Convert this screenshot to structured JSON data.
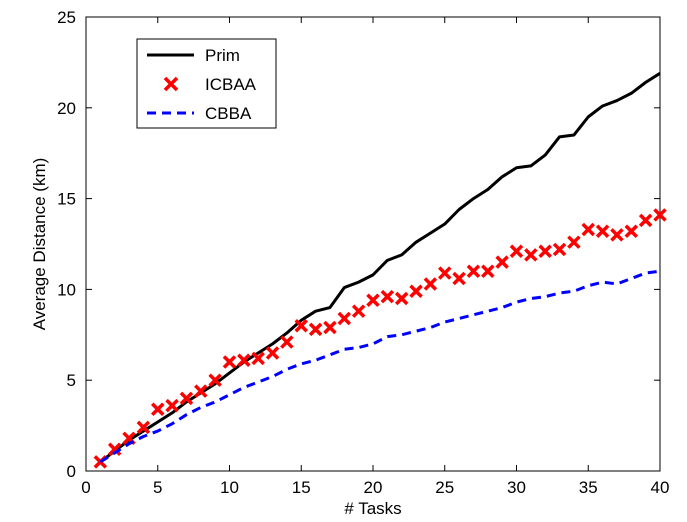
{
  "chart_data": {
    "type": "line",
    "title": "",
    "xlabel": "# Tasks",
    "ylabel": "Average Distance (km)",
    "xlim": [
      0,
      40
    ],
    "ylim": [
      0,
      25
    ],
    "xticks": [
      0,
      5,
      10,
      15,
      20,
      25,
      30,
      35,
      40
    ],
    "yticks": [
      0,
      5,
      10,
      15,
      20,
      25
    ],
    "grid": false,
    "legend_position": "top-left",
    "x": [
      1,
      2,
      3,
      4,
      5,
      6,
      7,
      8,
      9,
      10,
      11,
      12,
      13,
      14,
      15,
      16,
      17,
      18,
      19,
      20,
      21,
      22,
      23,
      24,
      25,
      26,
      27,
      28,
      29,
      30,
      31,
      32,
      33,
      34,
      35,
      36,
      37,
      38,
      39,
      40
    ],
    "series": [
      {
        "name": "Prim",
        "style": "solid-line",
        "color": "#000000",
        "values": [
          0.5,
          1.1,
          1.7,
          2.2,
          2.7,
          3.2,
          3.8,
          4.3,
          4.8,
          5.4,
          6.0,
          6.5,
          7.0,
          7.6,
          8.3,
          8.8,
          9.0,
          10.1,
          10.4,
          10.8,
          11.6,
          11.9,
          12.6,
          13.1,
          13.6,
          14.4,
          15.0,
          15.5,
          16.2,
          16.7,
          16.8,
          17.4,
          18.4,
          18.5,
          19.5,
          20.1,
          20.4,
          20.8,
          21.4,
          21.9
        ]
      },
      {
        "name": "ICBAA",
        "style": "x-markers",
        "color": "#ff0000",
        "values": [
          0.5,
          1.2,
          1.8,
          2.4,
          3.4,
          3.6,
          4.0,
          4.4,
          5.0,
          6.0,
          6.1,
          6.2,
          6.5,
          7.1,
          8.0,
          7.8,
          7.9,
          8.4,
          8.8,
          9.4,
          9.6,
          9.5,
          9.9,
          10.3,
          10.9,
          10.6,
          11.0,
          11.0,
          11.5,
          12.1,
          11.9,
          12.1,
          12.2,
          12.6,
          13.3,
          13.2,
          13.0,
          13.2,
          13.8,
          14.1
        ]
      },
      {
        "name": "CBBA",
        "style": "dashed-line",
        "color": "#0000ff",
        "values": [
          0.5,
          1.0,
          1.5,
          1.9,
          2.2,
          2.6,
          3.1,
          3.5,
          3.8,
          4.2,
          4.6,
          4.9,
          5.2,
          5.6,
          5.9,
          6.1,
          6.4,
          6.7,
          6.8,
          7.0,
          7.4,
          7.5,
          7.7,
          7.9,
          8.2,
          8.4,
          8.6,
          8.8,
          9.0,
          9.3,
          9.5,
          9.6,
          9.8,
          9.9,
          10.2,
          10.4,
          10.3,
          10.6,
          10.9,
          11.0
        ]
      }
    ]
  }
}
